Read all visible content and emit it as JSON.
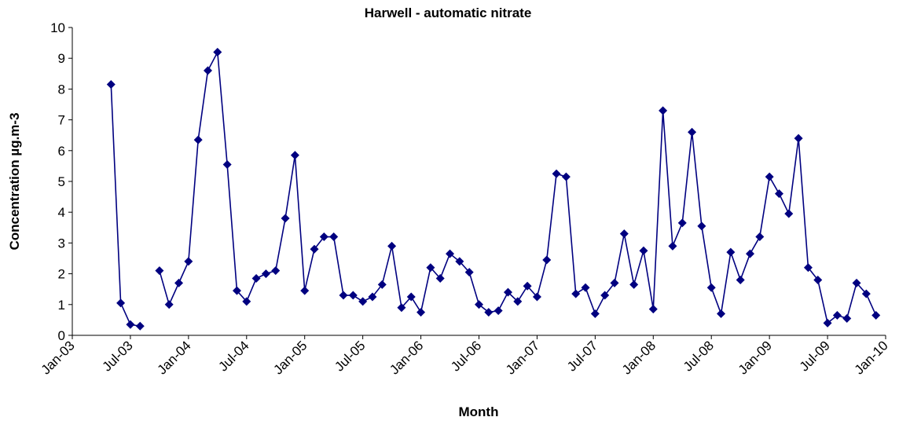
{
  "chart_data": {
    "type": "line",
    "title": "Harwell - automatic nitrate",
    "x_label": "Month",
    "y_label": "Concentration µg.m-3",
    "color": "#000080",
    "marker": "diamond",
    "grid": false,
    "x": [
      "2003-05",
      "2003-06",
      "2003-07",
      "2003-08",
      "2003-09",
      "2003-10",
      "2003-11",
      "2003-12",
      "2004-01",
      "2004-02",
      "2004-03",
      "2004-04",
      "2004-05",
      "2004-06",
      "2004-07",
      "2004-08",
      "2004-09",
      "2004-10",
      "2004-11",
      "2004-12",
      "2005-01",
      "2005-02",
      "2005-03",
      "2005-04",
      "2005-05",
      "2005-06",
      "2005-07",
      "2005-08",
      "2005-09",
      "2005-10",
      "2005-11",
      "2005-12",
      "2006-01",
      "2006-02",
      "2006-03",
      "2006-04",
      "2006-05",
      "2006-06",
      "2006-07",
      "2006-08",
      "2006-09",
      "2006-10",
      "2006-11",
      "2006-12",
      "2007-01",
      "2007-02",
      "2007-03",
      "2007-04",
      "2007-05",
      "2007-06",
      "2007-07",
      "2007-08",
      "2007-09",
      "2007-10",
      "2007-11",
      "2007-12",
      "2008-01",
      "2008-02",
      "2008-03",
      "2008-04",
      "2008-05",
      "2008-06",
      "2008-07",
      "2008-08",
      "2008-09",
      "2008-10",
      "2008-11",
      "2008-12",
      "2009-01",
      "2009-02",
      "2009-03",
      "2009-04",
      "2009-05",
      "2009-06",
      "2009-07",
      "2009-08",
      "2009-09",
      "2009-10",
      "2009-11",
      "2009-12"
    ],
    "values": [
      8.15,
      1.05,
      0.35,
      0.3,
      null,
      2.1,
      1.0,
      1.7,
      2.4,
      6.35,
      8.6,
      9.2,
      5.55,
      1.45,
      1.1,
      1.85,
      2.0,
      2.1,
      3.8,
      5.85,
      1.45,
      2.8,
      3.2,
      3.2,
      1.3,
      1.3,
      1.1,
      1.25,
      1.65,
      2.9,
      0.9,
      1.25,
      0.75,
      2.2,
      1.85,
      2.65,
      2.4,
      2.05,
      1.0,
      0.75,
      0.8,
      1.4,
      1.1,
      1.6,
      1.25,
      2.45,
      5.25,
      5.15,
      1.35,
      1.55,
      0.7,
      1.3,
      1.7,
      3.3,
      1.65,
      2.75,
      0.85,
      7.3,
      2.9,
      3.65,
      6.6,
      3.55,
      1.55,
      0.7,
      2.7,
      1.8,
      2.65,
      3.2,
      5.15,
      4.6,
      3.95,
      6.4,
      2.2,
      1.8,
      0.4,
      0.65,
      0.55,
      1.7,
      1.35,
      0.65
    ],
    "xlim": [
      "2003-01",
      "2010-01"
    ],
    "xticks": [
      {
        "value": "2003-01",
        "label": "Jan-03"
      },
      {
        "value": "2003-07",
        "label": "Jul-03"
      },
      {
        "value": "2004-01",
        "label": "Jan-04"
      },
      {
        "value": "2004-07",
        "label": "Jul-04"
      },
      {
        "value": "2005-01",
        "label": "Jan-05"
      },
      {
        "value": "2005-07",
        "label": "Jul-05"
      },
      {
        "value": "2006-01",
        "label": "Jan-06"
      },
      {
        "value": "2006-07",
        "label": "Jul-06"
      },
      {
        "value": "2007-01",
        "label": "Jan-07"
      },
      {
        "value": "2007-07",
        "label": "Jul-07"
      },
      {
        "value": "2008-01",
        "label": "Jan-08"
      },
      {
        "value": "2008-07",
        "label": "Jul-08"
      },
      {
        "value": "2009-01",
        "label": "Jan-09"
      },
      {
        "value": "2009-07",
        "label": "Jul-09"
      },
      {
        "value": "2010-01",
        "label": "Jan-10"
      }
    ],
    "ylim": [
      0,
      10
    ],
    "yticks": [
      0,
      1,
      2,
      3,
      4,
      5,
      6,
      7,
      8,
      9,
      10
    ]
  }
}
